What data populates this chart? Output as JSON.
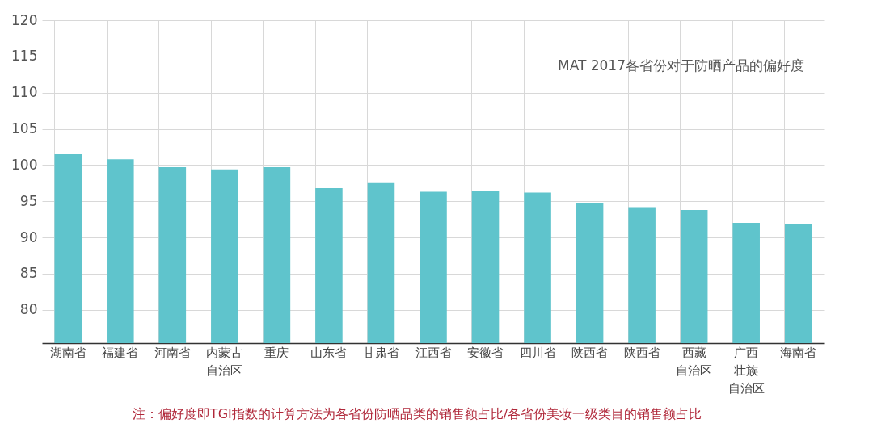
{
  "chart_data": {
    "type": "bar",
    "title": "MAT 2017各省份对于防晒产品的偏好度",
    "categories": [
      "湖南省",
      "福建省",
      "河南省",
      "内蒙古自治区",
      "重庆",
      "山东省",
      "甘肃省",
      "江西省",
      "安徽省",
      "四川省",
      "陕西省",
      "陕西省",
      "西藏自治区",
      "广西壮族自治区",
      "海南省"
    ],
    "values": [
      101.5,
      100.8,
      99.7,
      99.4,
      99.7,
      96.8,
      97.5,
      96.3,
      96.4,
      96.2,
      94.7,
      94.2,
      93.8,
      92.0,
      91.8
    ],
    "color": "#5fc4cc",
    "ylim": [
      75.4,
      120
    ],
    "yticks": [
      80,
      85,
      90,
      95,
      100,
      105,
      110,
      115,
      120
    ],
    "grid": true,
    "annotations": [
      "注：偏好度即TGI指数的计算方法为各省份防晒品类的销售额占比/各省份美妆一级类目的销售额占比"
    ]
  }
}
